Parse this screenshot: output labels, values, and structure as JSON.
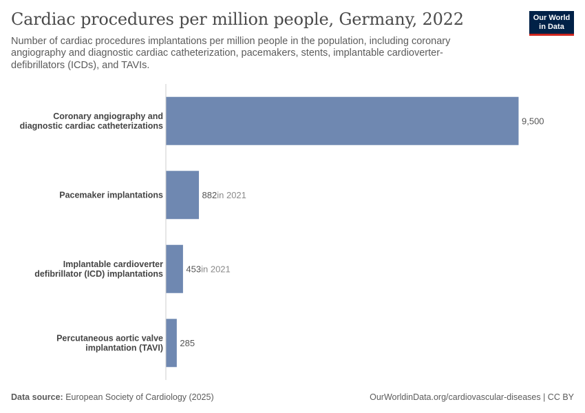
{
  "header": {
    "title": "Cardiac procedures per million people, Germany, 2022",
    "subtitle": "Number of cardiac procedures implantations per million people in the population, including coronary angiography and diagnostic cardiac catheterization, pacemakers, stents, implantable cardioverter-defibrillators (ICDs), and TAVIs.",
    "logo_text": "Our World in Data"
  },
  "colors": {
    "bar": "#6f88b1",
    "axis": "#cccccc",
    "logo_bg": "#002147",
    "logo_accent": "#ce261e"
  },
  "chart_data": {
    "type": "bar",
    "orientation": "horizontal",
    "title": "Cardiac procedures per million people, Germany, 2022",
    "xlabel": "",
    "ylabel": "",
    "xlim": [
      0,
      9500
    ],
    "grid": false,
    "categories": [
      [
        "Coronary angiography and",
        "diagnostic cardiac catheterizations"
      ],
      [
        "Pacemaker implantations"
      ],
      [
        "Implantable cardioverter",
        "defibrillator (ICD) implantations"
      ],
      [
        "Percutaneous aortic valve",
        "implantation (TAVI)"
      ]
    ],
    "values": [
      9500,
      882,
      453,
      285
    ],
    "value_labels": [
      "9,500",
      "882",
      "453",
      "285"
    ],
    "notes": [
      "",
      "in 2021",
      "in 2021",
      ""
    ]
  },
  "footer": {
    "source_label": "Data source:",
    "source_text": "European Society of Cardiology (2025)",
    "right_text": "OurWorldinData.org/cardiovascular-diseases | CC BY"
  }
}
